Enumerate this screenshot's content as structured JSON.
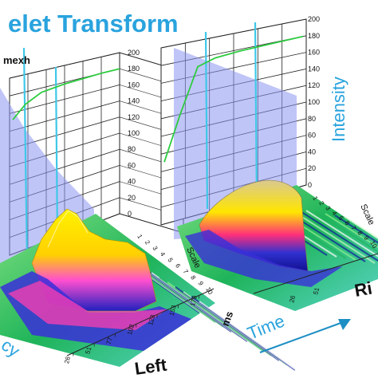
{
  "title": "elet Transform",
  "wavelet_name": "mexh",
  "colors": {
    "title": "#29a3de",
    "curve": "#2ecc40",
    "vertical_line": "#3fc8e8",
    "plane": "#8c96f0",
    "arrow": "#1d8ec4"
  },
  "labels": {
    "time": "Time",
    "intensity": "Intensity",
    "scale": "Scale",
    "ms": "ms",
    "frequency_fragment": "cy",
    "left_panel": "Left",
    "right_panel_fragment": "Ri",
    "scale_fragment_right": "Scale"
  },
  "chart_data": [
    {
      "type": "line",
      "panel": "Left",
      "title": "",
      "ylabel": "",
      "ylim": [
        0,
        200
      ],
      "y_ticks": [
        "0",
        "20",
        "40",
        "60",
        "80",
        "100",
        "120",
        "140",
        "160",
        "180",
        "200"
      ],
      "x_ticks": [
        "26",
        "51",
        "77",
        "102",
        "128",
        "153",
        "179"
      ],
      "x_unit": "ms",
      "scale_ticks": [
        "1",
        "2",
        "3",
        "4",
        "5",
        "6",
        "7",
        "8",
        "9",
        "10"
      ],
      "series": [
        {
          "values": [
            152,
            166,
            175,
            178,
            179,
            180,
            180
          ]
        }
      ],
      "grid": true
    },
    {
      "type": "line",
      "panel": "Right",
      "title": "",
      "ylabel": "Intensity",
      "ylim": [
        0,
        200
      ],
      "y_ticks": [
        "0",
        "20",
        "40",
        "60",
        "80",
        "100",
        "120",
        "140",
        "160",
        "180",
        "200"
      ],
      "x_ticks": [
        "26",
        "51"
      ],
      "series": [
        {
          "values": [
            70,
            120,
            170,
            176,
            178,
            179,
            180
          ]
        }
      ],
      "grid": true
    }
  ]
}
